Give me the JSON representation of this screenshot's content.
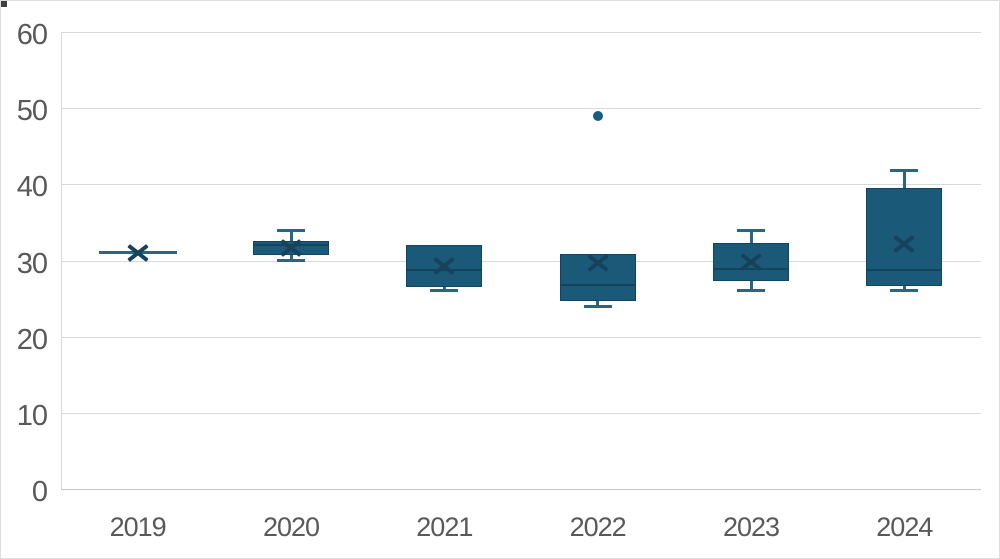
{
  "chart": {
    "background": "#ffffff",
    "border_color": "#dedede",
    "grid_color": "#d9d9d9",
    "axis_line_color": "#c6c6c6",
    "label_color": "#595959",
    "box_fill": "#1b5979",
    "box_border": "#114560",
    "whisker_color": "#266687",
    "median_color": "#123f58",
    "mean_marker_color": "#16425c",
    "outlier_color": "#175e80"
  },
  "chart_data": {
    "type": "boxplot",
    "title": "",
    "xlabel": "",
    "ylabel": "",
    "categories": [
      "2019",
      "2020",
      "2021",
      "2022",
      "2023",
      "2024"
    ],
    "y_ticks": [
      0,
      10,
      20,
      30,
      40,
      50,
      60
    ],
    "ylim": [
      0,
      60
    ],
    "grid": true,
    "legend": false,
    "series": [
      {
        "category": "2019",
        "min": 31,
        "q1": 31,
        "median": 31,
        "q3": 31,
        "max": 31,
        "mean": 31,
        "outliers": []
      },
      {
        "category": "2020",
        "min": 30,
        "q1": 30.7,
        "median": 32,
        "q3": 32.6,
        "max": 34,
        "mean": 31.7,
        "outliers": []
      },
      {
        "category": "2021",
        "min": 26,
        "q1": 26.5,
        "median": 28.7,
        "q3": 32,
        "max": 32,
        "mean": 29.3,
        "outliers": []
      },
      {
        "category": "2022",
        "min": 24,
        "q1": 24.7,
        "median": 26.8,
        "q3": 30.8,
        "max": 30.8,
        "mean": 29.7,
        "outliers": [
          49
        ]
      },
      {
        "category": "2023",
        "min": 26,
        "q1": 27.3,
        "median": 28.9,
        "q3": 32.3,
        "max": 34,
        "mean": 29.8,
        "outliers": []
      },
      {
        "category": "2024",
        "min": 26,
        "q1": 26.6,
        "median": 28.7,
        "q3": 39.5,
        "max": 41.8,
        "mean": 32.2,
        "outliers": []
      }
    ]
  }
}
